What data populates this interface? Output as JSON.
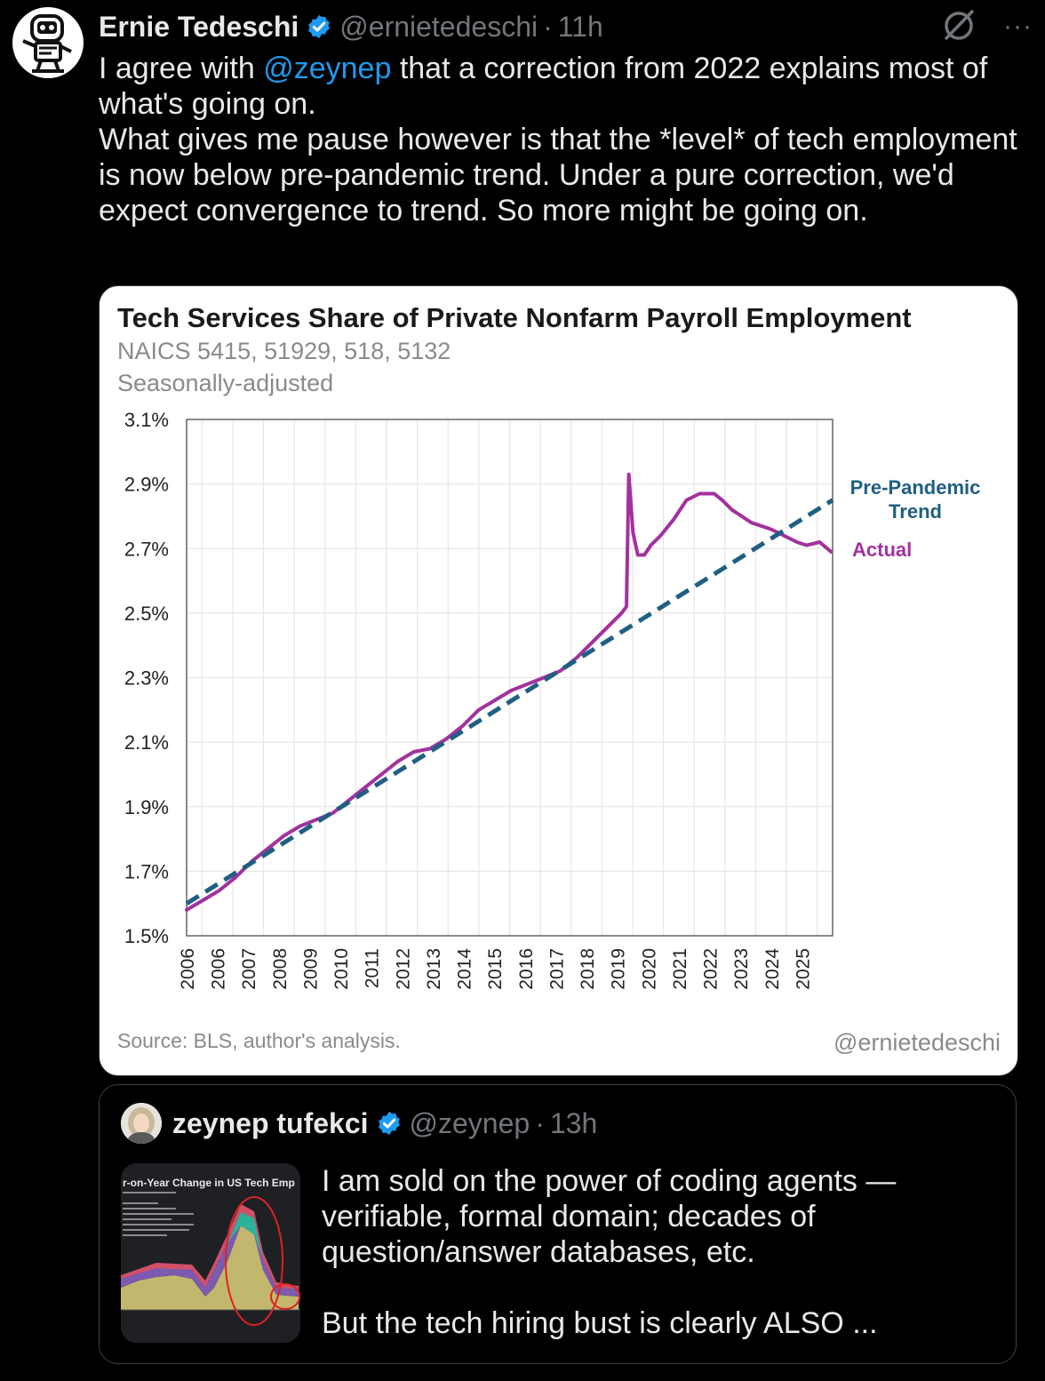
{
  "tweet": {
    "author_name": "Ernie Tedeschi",
    "author_handle": "@ernietedeschi",
    "separator": "·",
    "time": "11h",
    "text_before_mention": "I agree with ",
    "mention": "@zeynep",
    "text_after_mention": " that a correction from 2022 explains most of what's going on.",
    "text_paragraph_2": "What gives me pause however is that the *level* of tech employment is now below pre-pandemic trend. Under a pure correction, we'd expect convergence to trend. So more might be going on.",
    "more_label": "···"
  },
  "chart_data": {
    "type": "line",
    "title": "Tech Services Share of Private Nonfarm Payroll Employment",
    "subtitle_1": "NAICS 5415, 51929, 518, 5132",
    "subtitle_2": "Seasonally-adjusted",
    "source": "Source: BLS, author's analysis.",
    "credit": "@ernietedeschi",
    "y_ticks": [
      "3.1%",
      "2.9%",
      "2.7%",
      "2.5%",
      "2.3%",
      "2.1%",
      "1.9%",
      "1.7%",
      "1.5%"
    ],
    "y_tick_values": [
      3.1,
      2.9,
      2.7,
      2.5,
      2.3,
      2.1,
      1.9,
      1.7,
      1.5
    ],
    "ylim": [
      1.5,
      3.1
    ],
    "x_ticks": [
      "2006",
      "2006",
      "2007",
      "2008",
      "2009",
      "2010",
      "2011",
      "2012",
      "2013",
      "2014",
      "2015",
      "2016",
      "2017",
      "2018",
      "2019",
      "2020",
      "2021",
      "2022",
      "2023",
      "2024",
      "2025"
    ],
    "xlim": [
      2006.0,
      2025.9
    ],
    "grid": true,
    "series": [
      {
        "name": "Actual",
        "color": "#a3319e",
        "x": [
          2006.0,
          2006.5,
          2007.0,
          2007.5,
          2008.0,
          2008.5,
          2009.0,
          2009.5,
          2010.0,
          2010.5,
          2011.0,
          2011.5,
          2012.0,
          2012.5,
          2013.0,
          2013.5,
          2014.0,
          2014.5,
          2015.0,
          2015.5,
          2016.0,
          2016.5,
          2017.0,
          2017.5,
          2018.0,
          2018.5,
          2019.0,
          2019.4,
          2019.55,
          2019.62,
          2019.75,
          2019.9,
          2020.1,
          2020.3,
          2020.6,
          2021.0,
          2021.4,
          2021.8,
          2022.0,
          2022.25,
          2022.5,
          2022.8,
          2023.1,
          2023.4,
          2023.7,
          2024.0,
          2024.4,
          2024.8,
          2025.1,
          2025.5,
          2025.85
        ],
        "values": [
          1.58,
          1.61,
          1.64,
          1.68,
          1.73,
          1.77,
          1.81,
          1.84,
          1.86,
          1.88,
          1.92,
          1.96,
          2.0,
          2.04,
          2.07,
          2.08,
          2.11,
          2.15,
          2.2,
          2.23,
          2.26,
          2.28,
          2.3,
          2.32,
          2.36,
          2.41,
          2.46,
          2.5,
          2.52,
          2.93,
          2.75,
          2.68,
          2.68,
          2.71,
          2.74,
          2.79,
          2.85,
          2.87,
          2.87,
          2.87,
          2.85,
          2.82,
          2.8,
          2.78,
          2.77,
          2.76,
          2.74,
          2.72,
          2.71,
          2.72,
          2.69
        ]
      },
      {
        "name": "Pre-Pandemic Trend",
        "color": "#1f5f82",
        "dashed": true,
        "x": [
          2006.0,
          2025.9
        ],
        "values": [
          1.6,
          2.85
        ]
      }
    ],
    "labels": {
      "trend_line_1": "Pre-Pandemic",
      "trend_line_2": "Trend",
      "actual": "Actual"
    }
  },
  "quote": {
    "author_name": "zeynep tufekci",
    "author_handle": "@zeynep",
    "separator": "·",
    "time": "13h",
    "text_1": "I am sold on the power of coding agents — verifiable, formal domain; decades of question/answer databases, etc.",
    "text_2": "But the tech hiring bust is clearly ALSO ...",
    "thumb_title": "r-on-Year Change in US Tech Emp"
  }
}
